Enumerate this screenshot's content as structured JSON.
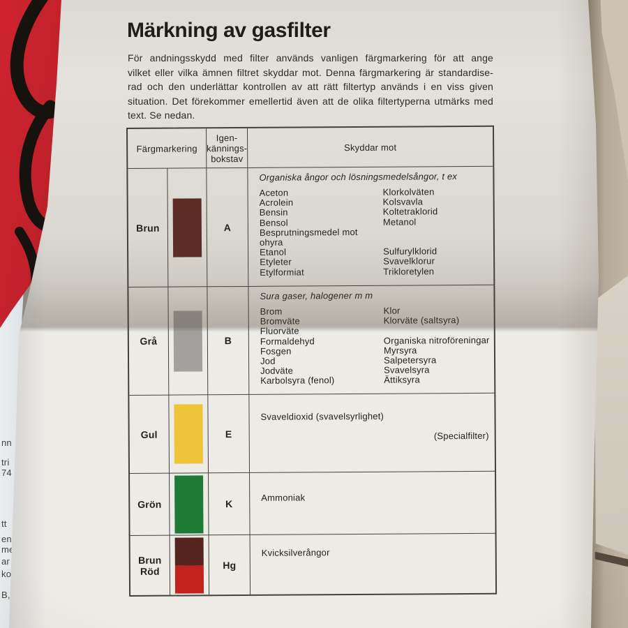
{
  "document": {
    "title": "Märkning av gasfilter",
    "intro_lines": [
      "För andningsskydd med filter används vanligen färgmarkering för att ange",
      "vilket eller vilka ämnen filtret skyddar mot. Denna färgmarkering är standardise-",
      "rad och den underlättar kontrollen av att rätt filtertyp används i en viss given",
      "situation. Det förekommer emellertid även att de olika filtertyperna utmärks med",
      "text. Se nedan."
    ]
  },
  "table": {
    "header": {
      "marking": "Färgmarkering",
      "letter": "Igen-\nkännings-\nbokstav",
      "protects": "Skyddar mot"
    },
    "rows": [
      {
        "name": "Brun",
        "letter": "A",
        "swatch": [
          "#5e2a22"
        ],
        "category": "Organiska ångor och lösningsmedelsångor, t ex",
        "pairs": [
          [
            "Aceton",
            "Klorkolväten"
          ],
          [
            "Acrolein",
            "Kolsvavla"
          ],
          [
            "Bensin",
            "Koltetraklorid"
          ],
          [
            "Bensol",
            "Metanol"
          ],
          [
            "Besprutningsmedel mot",
            ""
          ],
          [
            "ohyra",
            ""
          ],
          [
            "Etanol",
            "Sulfurylklorid"
          ],
          [
            "Etyleter",
            "Svavelklorur"
          ],
          [
            "Etylformiat",
            "Trikloretylen"
          ]
        ],
        "main": "",
        "note": ""
      },
      {
        "name": "Grå",
        "letter": "B",
        "swatch": [
          "#a3a19e"
        ],
        "category": "Sura gaser, halogener m m",
        "pairs": [
          [
            "Brom",
            "Klor"
          ],
          [
            "Bromväte",
            "Klorväte (saltsyra)"
          ],
          [
            "Fluorväte",
            ""
          ],
          [
            "Formaldehyd",
            "Organiska nitroföreningar"
          ],
          [
            "Fosgen",
            "Myrsyra"
          ],
          [
            "Jod",
            "Salpetersyra"
          ],
          [
            "Jodväte",
            "Svavelsyra"
          ],
          [
            "Karbolsyra (fenol)",
            "Ättiksyra"
          ]
        ],
        "main": "",
        "note": ""
      },
      {
        "name": "Gul",
        "letter": "E",
        "swatch": [
          "#f0c438"
        ],
        "category": "",
        "pairs": [],
        "main": "Svaveldioxid (svavelsyrlighet)",
        "note": "(Specialfilter)"
      },
      {
        "name": "Grön",
        "letter": "K",
        "swatch": [
          "#1e7b36"
        ],
        "category": "",
        "pairs": [],
        "main": "Ammoniak",
        "note": ""
      },
      {
        "name": "Brun\nRöd",
        "letter": "Hg",
        "swatch": [
          "#552420",
          "#c0231e"
        ],
        "category": "",
        "pairs": [],
        "main": "Kvicksilverångor",
        "note": ""
      }
    ]
  },
  "scene": {
    "left_page_fragments": [
      "nn",
      "tri",
      "74",
      "tt",
      "enr",
      "me",
      "ar",
      "ko",
      "B,"
    ],
    "colors": {
      "book_red": "#c0212b",
      "page": "#edebe6",
      "table_line": "#44403b"
    }
  }
}
